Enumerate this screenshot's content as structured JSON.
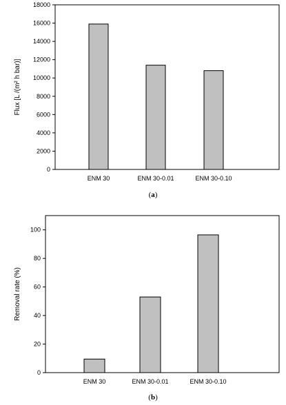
{
  "chart_data": [
    {
      "type": "bar",
      "categories": [
        "ENM 30",
        "ENM 30-0.01",
        "ENM 30-0.10"
      ],
      "values": [
        15900,
        11400,
        10800
      ],
      "ylabel": "Flux [L /(m² h bar)]",
      "ylim": [
        0,
        18000
      ],
      "yticks": [
        0,
        2000,
        4000,
        6000,
        8000,
        10000,
        12000,
        14000,
        16000,
        18000
      ],
      "grid": false,
      "caption_open": "(",
      "caption_letter": "a",
      "caption_close": ")",
      "bar_color": "#c0c0c0"
    },
    {
      "type": "bar",
      "categories": [
        "ENM 30",
        "ENM 30-0.01",
        "ENM 30-0.10"
      ],
      "values": [
        9.5,
        53,
        96.5
      ],
      "ylabel": "Removal rate (%)",
      "ylim": [
        0,
        110
      ],
      "yticks": [
        0,
        20,
        40,
        60,
        80,
        100
      ],
      "grid": false,
      "caption_open": "(",
      "caption_letter": "b",
      "caption_close": ")",
      "bar_color": "#c0c0c0"
    }
  ]
}
